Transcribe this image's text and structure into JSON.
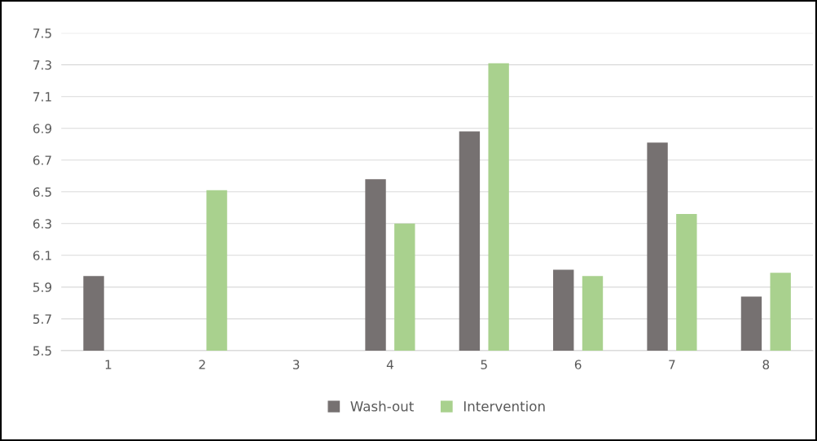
{
  "chart_data": {
    "type": "bar",
    "categories": [
      "1",
      "2",
      "3",
      "4",
      "5",
      "6",
      "7",
      "8"
    ],
    "series": [
      {
        "name": "Wash-out",
        "color": "#767171",
        "values": [
          5.97,
          null,
          null,
          6.58,
          6.88,
          6.01,
          6.81,
          5.84
        ]
      },
      {
        "name": "Intervention",
        "color": "#a9d18e",
        "values": [
          null,
          6.51,
          null,
          6.3,
          7.31,
          5.97,
          6.36,
          5.99
        ]
      }
    ],
    "ylim": [
      5.5,
      7.5
    ],
    "yticks": [
      5.5,
      5.7,
      5.9,
      6.1,
      6.3,
      6.5,
      6.7,
      6.9,
      7.1,
      7.3,
      7.5
    ],
    "grid": "y",
    "legend": "bottom"
  }
}
